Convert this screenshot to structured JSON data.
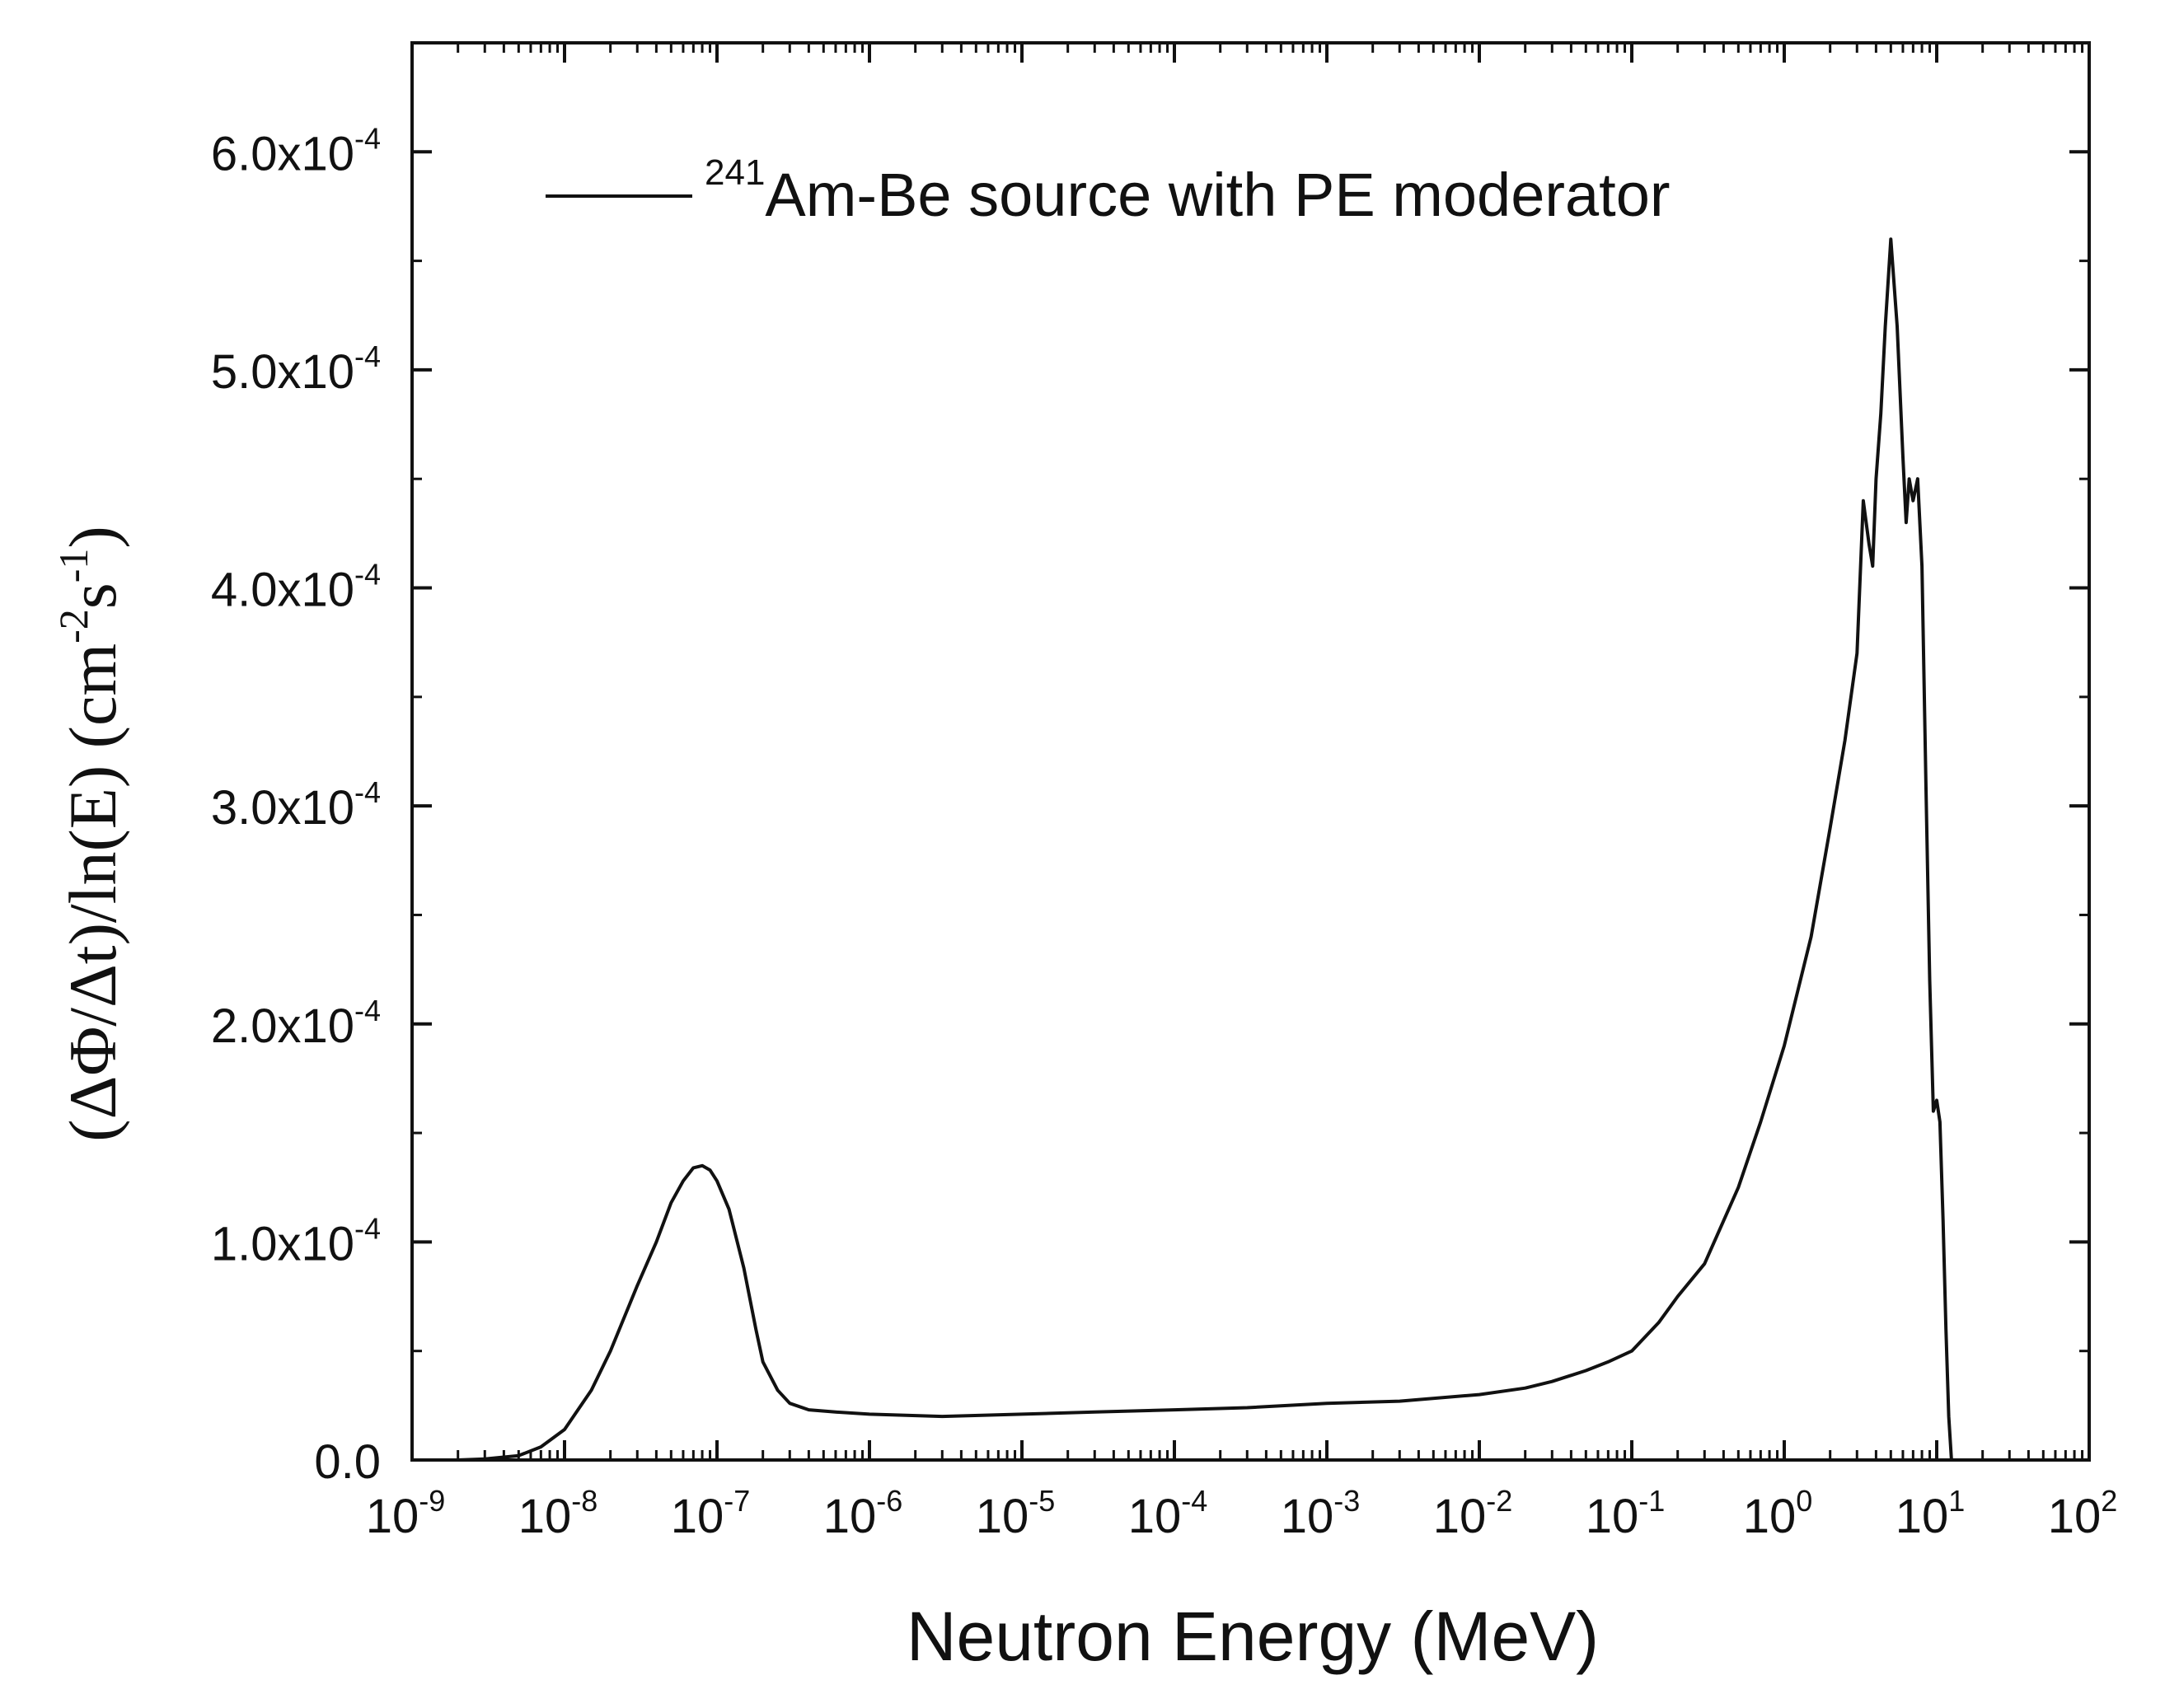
{
  "chart_data": {
    "type": "line",
    "title": "",
    "xlabel": "Neutron Energy (MeV)",
    "ylabel": "(ΔΦ/Δt)/ln(E) (cm-2s-1)",
    "ylabel_parts": {
      "main": "(ΔΦ/Δt)/ln(E) (cm",
      "sup1": "-2",
      "mid": "s",
      "sup2": "-1",
      "end": ")"
    },
    "x_scale": "log",
    "xlim": [
      1e-09,
      100
    ],
    "ylim": [
      0,
      0.00065
    ],
    "x_ticks": [
      {
        "value": 1e-09,
        "base": "10",
        "exp": "-9"
      },
      {
        "value": 1e-08,
        "base": "10",
        "exp": "-8"
      },
      {
        "value": 1e-07,
        "base": "10",
        "exp": "-7"
      },
      {
        "value": 1e-06,
        "base": "10",
        "exp": "-6"
      },
      {
        "value": 1e-05,
        "base": "10",
        "exp": "-5"
      },
      {
        "value": 0.0001,
        "base": "10",
        "exp": "-4"
      },
      {
        "value": 0.001,
        "base": "10",
        "exp": "-3"
      },
      {
        "value": 0.01,
        "base": "10",
        "exp": "-2"
      },
      {
        "value": 0.1,
        "base": "10",
        "exp": "-1"
      },
      {
        "value": 1,
        "base": "10",
        "exp": "0"
      },
      {
        "value": 10,
        "base": "10",
        "exp": "1"
      },
      {
        "value": 100,
        "base": "10",
        "exp": "2"
      }
    ],
    "y_ticks": [
      {
        "value": 0,
        "base": "0.0",
        "exp": ""
      },
      {
        "value": 0.0001,
        "base": "1.0x10",
        "exp": "-4"
      },
      {
        "value": 0.0002,
        "base": "2.0x10",
        "exp": "-4"
      },
      {
        "value": 0.0003,
        "base": "3.0x10",
        "exp": "-4"
      },
      {
        "value": 0.0004,
        "base": "4.0x10",
        "exp": "-4"
      },
      {
        "value": 0.0005,
        "base": "5.0x10",
        "exp": "-4"
      },
      {
        "value": 0.0006,
        "base": "6.0x10",
        "exp": "-4"
      }
    ],
    "legend": {
      "position": "top-left",
      "sup": "241",
      "label": "Am-Be source with PE moderator"
    },
    "series": [
      {
        "name": "241Am-Be source with PE moderator",
        "points": [
          [
            1e-09,
            0.0
          ],
          [
            2e-09,
            0.0
          ],
          [
            3e-09,
            5e-07
          ],
          [
            5e-09,
            2e-06
          ],
          [
            7e-09,
            6e-06
          ],
          [
            1e-08,
            1.4e-05
          ],
          [
            1.5e-08,
            3.2e-05
          ],
          [
            2e-08,
            5e-05
          ],
          [
            3e-08,
            8e-05
          ],
          [
            4e-08,
            0.0001
          ],
          [
            5e-08,
            0.000118
          ],
          [
            6e-08,
            0.000128
          ],
          [
            7e-08,
            0.000134
          ],
          [
            8e-08,
            0.000135
          ],
          [
            9e-08,
            0.000133
          ],
          [
            1e-07,
            0.000128
          ],
          [
            1.2e-07,
            0.000115
          ],
          [
            1.5e-07,
            8.8e-05
          ],
          [
            1.8e-07,
            6e-05
          ],
          [
            2e-07,
            4.5e-05
          ],
          [
            2.5e-07,
            3.2e-05
          ],
          [
            3e-07,
            2.6e-05
          ],
          [
            4e-07,
            2.3e-05
          ],
          [
            6e-07,
            2.2e-05
          ],
          [
            1e-06,
            2.1e-05
          ],
          [
            3e-06,
            2e-05
          ],
          [
            1e-05,
            2.1e-05
          ],
          [
            3e-05,
            2.2e-05
          ],
          [
            0.0001,
            2.3e-05
          ],
          [
            0.0003,
            2.4e-05
          ],
          [
            0.001,
            2.6e-05
          ],
          [
            0.003,
            2.7e-05
          ],
          [
            0.01,
            3e-05
          ],
          [
            0.02,
            3.3e-05
          ],
          [
            0.03,
            3.6e-05
          ],
          [
            0.05,
            4.1e-05
          ],
          [
            0.07,
            4.5e-05
          ],
          [
            0.1,
            5e-05
          ],
          [
            0.15,
            6.3e-05
          ],
          [
            0.2,
            7.5e-05
          ],
          [
            0.3,
            9e-05
          ],
          [
            0.5,
            0.000125
          ],
          [
            0.7,
            0.000155
          ],
          [
            1,
            0.00019
          ],
          [
            1.5,
            0.00024
          ],
          [
            2,
            0.00029
          ],
          [
            2.5,
            0.00033
          ],
          [
            3,
            0.00037
          ],
          [
            3.3,
            0.00044
          ],
          [
            3.6,
            0.00042
          ],
          [
            3.8,
            0.00041
          ],
          [
            4.0,
            0.00045
          ],
          [
            4.3,
            0.00048
          ],
          [
            4.6,
            0.00052
          ],
          [
            5.0,
            0.00056
          ],
          [
            5.5,
            0.00052
          ],
          [
            6.0,
            0.00046
          ],
          [
            6.3,
            0.00043
          ],
          [
            6.6,
            0.00045
          ],
          [
            7.0,
            0.00044
          ],
          [
            7.5,
            0.00045
          ],
          [
            8.0,
            0.00041
          ],
          [
            8.5,
            0.00031
          ],
          [
            9.0,
            0.00022
          ],
          [
            9.5,
            0.00016
          ],
          [
            10.0,
            0.000165
          ],
          [
            10.5,
            0.000155
          ],
          [
            11.0,
            0.00011
          ],
          [
            11.5,
            6e-05
          ],
          [
            12.0,
            2e-05
          ],
          [
            12.5,
            0.0
          ]
        ]
      }
    ]
  },
  "colors": {
    "line": "#111111",
    "axis": "#111111",
    "background": "#ffffff"
  }
}
